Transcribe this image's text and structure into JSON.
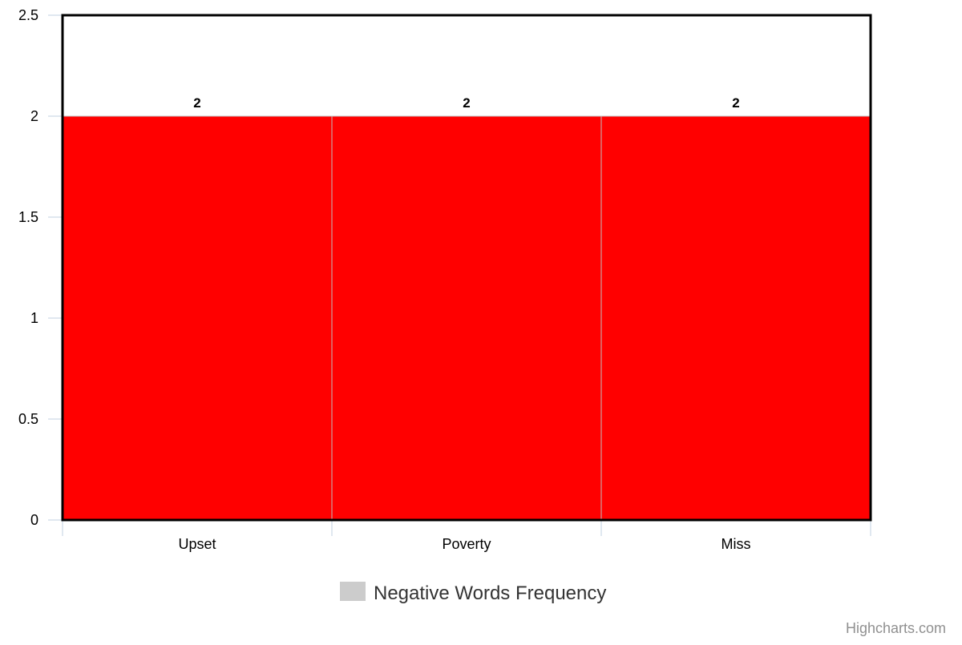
{
  "chart_data": {
    "type": "bar",
    "categories": [
      "Upset",
      "Poverty",
      "Miss"
    ],
    "series": [
      {
        "name": "Negative Words Frequency",
        "values": [
          2,
          2,
          2
        ]
      }
    ],
    "ylim": [
      0,
      2.5
    ],
    "yticks": [
      "0",
      "0.5",
      "1",
      "1.5",
      "2",
      "2.5"
    ],
    "ytick_values": [
      0,
      0.5,
      1,
      1.5,
      2,
      2.5
    ],
    "data_labels": [
      "2",
      "2",
      "2"
    ],
    "bar_color": "#ff0000",
    "legend_symbol_color": "#cccccc",
    "legend_position": "bottom-center",
    "grid": false
  },
  "credits": "Highcharts.com"
}
